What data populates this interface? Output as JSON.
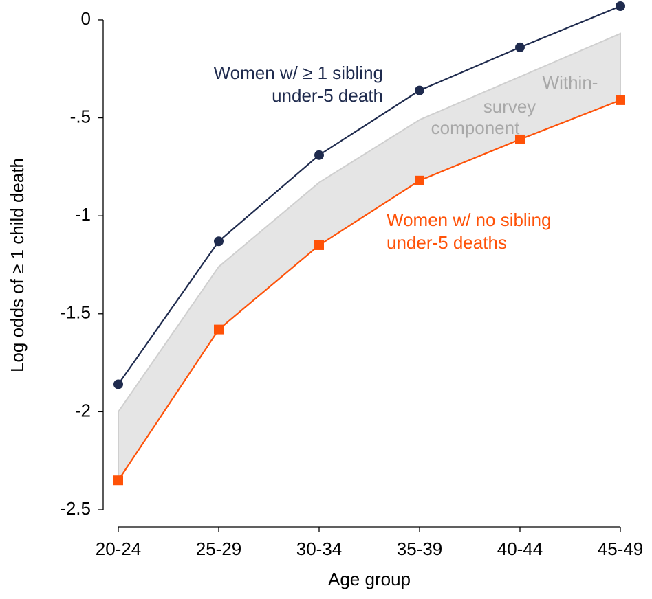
{
  "chart_data": {
    "type": "line",
    "x_label": "Age group",
    "y_label": "Log odds of ≥ 1 child death",
    "categories": [
      "20-24",
      "25-29",
      "30-34",
      "35-39",
      "40-44",
      "45-49"
    ],
    "ylim": [
      -2.5,
      0.07
    ],
    "yticks": [
      0,
      {
        "value": -0.5,
        "label": "-.5"
      },
      -1,
      -1.5,
      -2,
      -2.5
    ],
    "series": [
      {
        "name": "Women w/ ≥ 1 sibling under-5 death",
        "label_lines": [
          "Women w/ ≥ 1 sibling",
          "under-5 death"
        ],
        "color": "#1f2b4e",
        "marker": "circle",
        "values": [
          -1.86,
          -1.13,
          -0.69,
          -0.36,
          -0.14,
          0.07
        ]
      },
      {
        "name": "Women w/ no sibling under-5 deaths",
        "label_lines": [
          "Women w/ no sibling",
          "under-5 deaths"
        ],
        "color": "#ff5208",
        "marker": "square",
        "values": [
          -2.35,
          -1.58,
          -1.15,
          -0.82,
          -0.61,
          -0.41
        ]
      }
    ],
    "band": {
      "name": "Within-survey component",
      "label_lines": [
        "Within-",
        "survey",
        "component"
      ],
      "color": "#e5e5e5",
      "edge_color": "#cfcfcf",
      "label_color": "#a8a8a8",
      "upper": [
        -2.0,
        -1.26,
        -0.83,
        -0.51,
        -0.29,
        -0.07
      ],
      "lower_series": 1
    }
  }
}
